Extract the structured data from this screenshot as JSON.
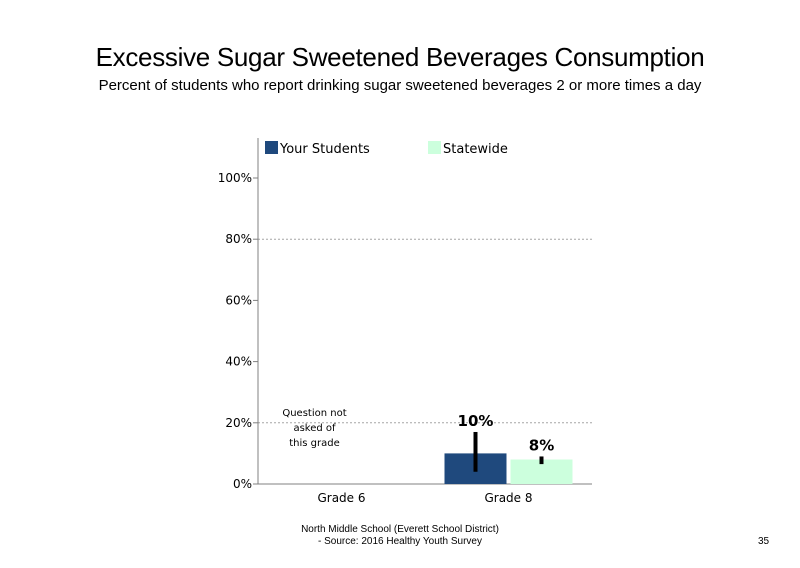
{
  "title": "Excessive Sugar Sweetened Beverages Consumption",
  "subtitle": "Percent of students who report drinking sugar sweetened beverages 2 or more times a day",
  "footer": {
    "line1": "North Middle School (Everett School District)",
    "line2": "- Source: 2016 Healthy Youth Survey"
  },
  "page_number": "35",
  "chart_data": {
    "type": "bar",
    "categories": [
      "Grade 6",
      "Grade 8"
    ],
    "series": [
      {
        "name": "Your Students",
        "color": "#1f497d",
        "values": [
          null,
          10
        ],
        "error": [
          null,
          [
            4,
            17
          ]
        ],
        "labels": [
          "",
          "10%"
        ]
      },
      {
        "name": "Statewide",
        "color": "#ccffdd",
        "values": [
          null,
          8
        ],
        "error": [
          null,
          [
            6.5,
            9
          ]
        ],
        "labels": [
          "",
          "8%"
        ]
      }
    ],
    "ylim": [
      0,
      100
    ],
    "yticks": [
      "0%",
      "20%",
      "40%",
      "60%",
      "80%",
      "100%"
    ],
    "gridlines": [
      20,
      80
    ],
    "legend_position": "top",
    "annotations": [
      {
        "category": "Grade 6",
        "lines": [
          "Question not",
          "asked of",
          "this grade"
        ]
      }
    ]
  }
}
